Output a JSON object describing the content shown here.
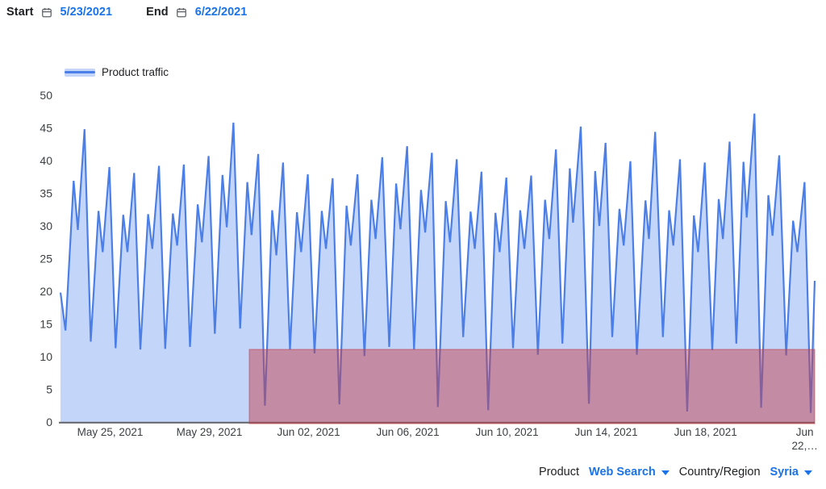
{
  "toolbar": {
    "start_label": "Start",
    "start_date": "5/23/2021",
    "end_label": "End",
    "end_date": "6/22/2021"
  },
  "legend": {
    "label": "Product traffic"
  },
  "controls": {
    "product_label": "Product",
    "product_value": "Web Search",
    "country_label": "Country/Region",
    "country_value": "Syria"
  },
  "colors": {
    "accent_link": "#1a73e8",
    "text_primary": "#202124",
    "text_axis": "#3c4043",
    "icon_gray": "#5f6368"
  },
  "chart_data": {
    "type": "area",
    "title": "",
    "xlabel": "",
    "ylabel": "",
    "grid": false,
    "legend_position": "top-left",
    "ylim": [
      0,
      50
    ],
    "ytick_step": 5,
    "x_unit": "days_since_5/23/2021",
    "x_extent_days": 30.4,
    "xticks": [
      {
        "day": 2,
        "label": "May 25, 2021"
      },
      {
        "day": 6,
        "label": "May 29, 2021"
      },
      {
        "day": 10,
        "label": "Jun 02, 2021"
      },
      {
        "day": 14,
        "label": "Jun 06, 2021"
      },
      {
        "day": 18,
        "label": "Jun 10, 2021"
      },
      {
        "day": 22,
        "label": "Jun 14, 2021"
      },
      {
        "day": 26,
        "label": "Jun 18, 2021"
      },
      {
        "day": 30,
        "label": "Jun 22,…",
        "wrap": [
          "Jun",
          "22,…"
        ]
      }
    ],
    "axis_line_color": "#5f6368",
    "series": [
      {
        "name": "Product traffic",
        "color": "#4b7fe7",
        "fill_color": "#c4d5fa",
        "points": [
          [
            0,
            19.8
          ],
          [
            0.2,
            14
          ],
          [
            0.53,
            36.9
          ],
          [
            0.7,
            29.4
          ],
          [
            0.97,
            44.8
          ],
          [
            1.22,
            12.3
          ],
          [
            1.53,
            32.3
          ],
          [
            1.7,
            26
          ],
          [
            1.97,
            39
          ],
          [
            2.22,
            11.3
          ],
          [
            2.53,
            31.7
          ],
          [
            2.7,
            26
          ],
          [
            2.97,
            38.1
          ],
          [
            3.22,
            11.1
          ],
          [
            3.53,
            31.8
          ],
          [
            3.7,
            26.5
          ],
          [
            3.97,
            39.2
          ],
          [
            4.22,
            11.2
          ],
          [
            4.53,
            31.9
          ],
          [
            4.7,
            27
          ],
          [
            4.97,
            39.4
          ],
          [
            5.22,
            11.5
          ],
          [
            5.53,
            33.3
          ],
          [
            5.7,
            27.5
          ],
          [
            5.97,
            40.7
          ],
          [
            6.22,
            13.5
          ],
          [
            6.53,
            37.8
          ],
          [
            6.7,
            29.8
          ],
          [
            6.97,
            45.8
          ],
          [
            7.24,
            14.3
          ],
          [
            7.53,
            36.7
          ],
          [
            7.7,
            28.6
          ],
          [
            7.97,
            41
          ],
          [
            8.24,
            2.5
          ],
          [
            8.53,
            32.4
          ],
          [
            8.7,
            25.5
          ],
          [
            8.97,
            39.7
          ],
          [
            9.25,
            11.1
          ],
          [
            9.53,
            32.1
          ],
          [
            9.7,
            26
          ],
          [
            9.97,
            37.9
          ],
          [
            10.24,
            10.5
          ],
          [
            10.53,
            32.3
          ],
          [
            10.7,
            26.5
          ],
          [
            10.97,
            37.3
          ],
          [
            11.24,
            2.7
          ],
          [
            11.53,
            33.1
          ],
          [
            11.7,
            27
          ],
          [
            11.97,
            37.9
          ],
          [
            12.25,
            10.1
          ],
          [
            12.53,
            34
          ],
          [
            12.7,
            28
          ],
          [
            12.97,
            40.5
          ],
          [
            13.25,
            11.5
          ],
          [
            13.53,
            36.5
          ],
          [
            13.7,
            29.5
          ],
          [
            13.97,
            42.2
          ],
          [
            14.25,
            11.1
          ],
          [
            14.53,
            35.5
          ],
          [
            14.7,
            29
          ],
          [
            14.97,
            41.2
          ],
          [
            15.21,
            2.3
          ],
          [
            15.53,
            33.8
          ],
          [
            15.7,
            27.5
          ],
          [
            15.97,
            40.2
          ],
          [
            16.23,
            13
          ],
          [
            16.53,
            32.2
          ],
          [
            16.7,
            26.5
          ],
          [
            16.97,
            38.3
          ],
          [
            17.24,
            1.8
          ],
          [
            17.53,
            32
          ],
          [
            17.7,
            26
          ],
          [
            17.97,
            37.4
          ],
          [
            18.24,
            11.3
          ],
          [
            18.53,
            32.4
          ],
          [
            18.7,
            26.5
          ],
          [
            18.97,
            37.7
          ],
          [
            19.24,
            10.3
          ],
          [
            19.53,
            34
          ],
          [
            19.7,
            28
          ],
          [
            19.97,
            41.7
          ],
          [
            20.23,
            12
          ],
          [
            20.53,
            38.8
          ],
          [
            20.66,
            30.5
          ],
          [
            20.97,
            45.2
          ],
          [
            21.3,
            2.8
          ],
          [
            21.55,
            38.4
          ],
          [
            21.72,
            30
          ],
          [
            21.97,
            42.7
          ],
          [
            22.24,
            13
          ],
          [
            22.53,
            32.6
          ],
          [
            22.7,
            27
          ],
          [
            22.97,
            39.9
          ],
          [
            23.23,
            10.3
          ],
          [
            23.58,
            33.9
          ],
          [
            23.72,
            28
          ],
          [
            23.97,
            44.4
          ],
          [
            24.28,
            13
          ],
          [
            24.53,
            32.4
          ],
          [
            24.7,
            27
          ],
          [
            24.97,
            40.2
          ],
          [
            25.26,
            1.6
          ],
          [
            25.53,
            31.6
          ],
          [
            25.7,
            26
          ],
          [
            25.97,
            39.7
          ],
          [
            26.27,
            11
          ],
          [
            26.53,
            34.1
          ],
          [
            26.7,
            28
          ],
          [
            26.97,
            42.9
          ],
          [
            27.24,
            12
          ],
          [
            27.53,
            39.8
          ],
          [
            27.66,
            31.3
          ],
          [
            27.97,
            47.2
          ],
          [
            28.24,
            2.2
          ],
          [
            28.53,
            34.7
          ],
          [
            28.7,
            28.5
          ],
          [
            28.97,
            40.8
          ],
          [
            29.25,
            10.2
          ],
          [
            29.53,
            30.8
          ],
          [
            29.7,
            26
          ],
          [
            29.99,
            36.7
          ],
          [
            30.24,
            1.4
          ],
          [
            30.4,
            21.6
          ]
        ]
      }
    ],
    "anomaly_region": {
      "day_start": 7.61,
      "day_end": 30.4,
      "value_min": 0,
      "value_max": 11.1,
      "color": "#c2424d",
      "opacity": 0.5
    }
  }
}
